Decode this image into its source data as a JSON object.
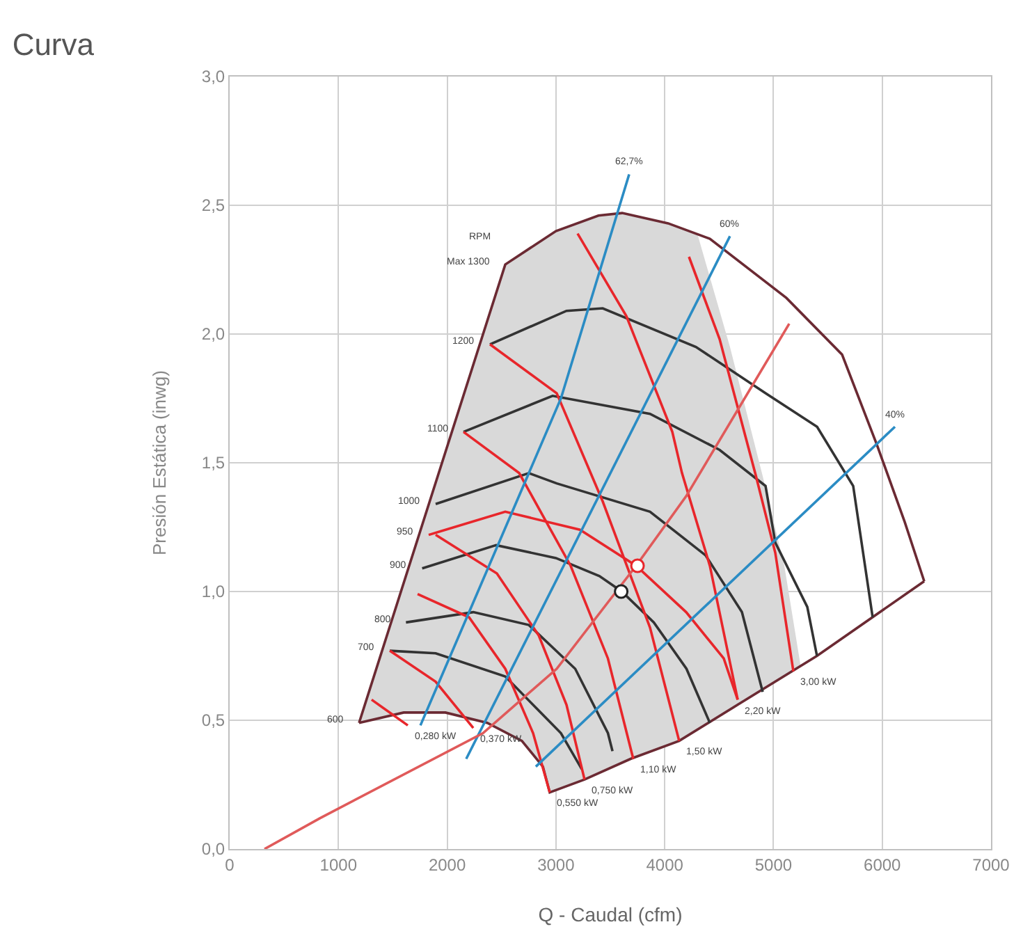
{
  "chart_data": {
    "type": "line",
    "title": "Curva",
    "xlabel": "Q - Caudal (cfm)",
    "ylabel": "Presión Estática (inwg)",
    "xlim": [
      0,
      7000
    ],
    "xticks": [
      0,
      1000,
      2000,
      3000,
      4000,
      5000,
      6000,
      7000
    ],
    "ylim": [
      0,
      3
    ],
    "yticks": [
      {
        "value": 0,
        "label": "0,0"
      },
      {
        "value": 0.5,
        "label": "0,5"
      },
      {
        "value": 1,
        "label": "1,0"
      },
      {
        "value": 1.5,
        "label": "1,5"
      },
      {
        "value": 2,
        "label": "2,0"
      },
      {
        "value": 2.5,
        "label": "2,5"
      },
      {
        "value": 3,
        "label": "3,0"
      }
    ],
    "grid": true,
    "marker": "none",
    "series": [
      {
        "type": "area",
        "color": "#d9d9d9",
        "x": [
          1190,
          2534,
          3000,
          3391,
          3609,
          4031,
          4300,
          4600,
          4900,
          5100,
          5250,
          4670,
          4133,
          3686,
          3263,
          2943,
          2880,
          2687,
          2368,
          1984,
          1600,
          1190
        ],
        "values": [
          0.49,
          2.27,
          2.4,
          2.46,
          2.47,
          2.43,
          2.39,
          1.95,
          1.45,
          1.1,
          0.71,
          0.56,
          0.42,
          0.35,
          0.27,
          0.22,
          0.32,
          0.42,
          0.49,
          0.53,
          0.53,
          0.49
        ]
      },
      {
        "color": "#6b2a33",
        "x": [
          1190,
          2534,
          3000,
          3391,
          3609,
          4031,
          4415,
          5119,
          5631,
          5951,
          6207,
          6386
        ],
        "values": [
          0.49,
          2.27,
          2.4,
          2.46,
          2.47,
          2.43,
          2.37,
          2.14,
          1.92,
          1.57,
          1.27,
          1.04
        ]
      },
      {
        "color": "#6b2a33",
        "x": [
          6386,
          5400,
          4670,
          4133,
          3686,
          3263,
          2943,
          2880,
          2687,
          2368,
          1984,
          1600,
          1190
        ],
        "values": [
          1.04,
          0.75,
          0.56,
          0.42,
          0.35,
          0.27,
          0.22,
          0.32,
          0.42,
          0.49,
          0.53,
          0.53,
          0.49
        ]
      },
      {
        "color": "#333333",
        "x": [
          2393,
          3097,
          3430,
          4287,
          4927,
          5401,
          5733,
          5912
        ],
        "values": [
          1.96,
          2.09,
          2.1,
          1.95,
          1.77,
          1.64,
          1.41,
          0.9
        ]
      },
      {
        "color": "#333333",
        "x": [
          2150,
          2969,
          3865,
          4505,
          4927,
          5017,
          5311,
          5400
        ],
        "values": [
          1.62,
          1.76,
          1.69,
          1.55,
          1.41,
          1.19,
          0.94,
          0.75
        ]
      },
      {
        "color": "#333333",
        "x": [
          1894,
          2751,
          3007,
          3865,
          4377,
          4710,
          4901
        ],
        "values": [
          1.34,
          1.46,
          1.42,
          1.31,
          1.14,
          0.92,
          0.61
        ]
      },
      {
        "color": "#333333",
        "x": [
          1770,
          2450,
          3000,
          3400,
          3605,
          3900,
          4200,
          4415
        ],
        "values": [
          1.09,
          1.18,
          1.13,
          1.06,
          1.0,
          0.88,
          0.7,
          0.49
        ]
      },
      {
        "color": "#333333",
        "x": [
          1621,
          2240,
          2751,
          3177,
          3478,
          3520
        ],
        "values": [
          0.88,
          0.92,
          0.87,
          0.7,
          0.45,
          0.38
        ]
      },
      {
        "color": "#333333",
        "x": [
          1472,
          1894,
          2534,
          3046,
          3238
        ],
        "values": [
          0.77,
          0.76,
          0.67,
          0.45,
          0.31
        ]
      },
      {
        "color": "#e8262b",
        "x": [
          4223,
          4505,
          4838,
          5017,
          5183
        ],
        "values": [
          2.3,
          1.98,
          1.45,
          1.15,
          0.69
        ]
      },
      {
        "color": "#e8262b",
        "x": [
          3199,
          3647,
          4070,
          4159,
          4415,
          4671
        ],
        "values": [
          2.39,
          2.07,
          1.62,
          1.46,
          1.1,
          0.58
        ]
      },
      {
        "color": "#e8262b",
        "x": [
          1830,
          2534,
          3221,
          3737,
          4197,
          4543,
          4671
        ],
        "values": [
          1.22,
          1.31,
          1.24,
          1.1,
          0.92,
          0.74,
          0.58
        ]
      },
      {
        "color": "#e8262b",
        "x": [
          2393,
          3007,
          3430,
          3865,
          4133
        ],
        "values": [
          1.96,
          1.77,
          1.35,
          0.86,
          0.42
        ]
      },
      {
        "color": "#e8262b",
        "x": [
          2150,
          2662,
          3135,
          3478,
          3711
        ],
        "values": [
          1.62,
          1.46,
          1.1,
          0.74,
          0.35
        ]
      },
      {
        "color": "#e8262b",
        "x": [
          1894,
          2457,
          2841,
          3097,
          3263
        ],
        "values": [
          1.22,
          1.07,
          0.83,
          0.56,
          0.27
        ]
      },
      {
        "color": "#e8262b",
        "x": [
          1728,
          2201,
          2534,
          2790,
          2943
        ],
        "values": [
          0.99,
          0.9,
          0.7,
          0.45,
          0.22
        ]
      },
      {
        "color": "#e8262b",
        "x": [
          1472,
          1894,
          2240
        ],
        "values": [
          0.77,
          0.65,
          0.47
        ]
      },
      {
        "color": "#e8262b",
        "x": [
          1305,
          1638
        ],
        "values": [
          0.58,
          0.48
        ]
      },
      {
        "color": "#2b8cc4",
        "x": [
          3673,
          3046,
          1754
        ],
        "values": [
          2.62,
          1.75,
          0.48
        ]
      },
      {
        "color": "#2b8cc4",
        "x": [
          4600,
          2175
        ],
        "values": [
          2.38,
          0.35
        ]
      },
      {
        "color": "#2b8cc4",
        "x": [
          6117,
          2815
        ],
        "values": [
          1.64,
          0.32
        ]
      },
      {
        "color": "#e05a5a",
        "x": [
          320,
          832,
          2329,
          3007,
          3737,
          4197,
          5145
        ],
        "values": [
          0,
          0.12,
          0.45,
          0.7,
          1.1,
          1.37,
          2.04
        ]
      },
      {
        "type": "scatter",
        "marker": "circle",
        "color": "#222222",
        "x": [
          3600
        ],
        "values": [
          1.0
        ]
      },
      {
        "type": "scatter",
        "marker": "circle",
        "color": "#e8262b",
        "x": [
          3750
        ],
        "values": [
          1.1
        ]
      }
    ],
    "annotations": [
      "RPM",
      {
        "text": "Max 1300",
        "x": 2534,
        "y": 2.27
      },
      {
        "text": "1200",
        "x": 2393,
        "y": 1.96
      },
      {
        "text": "1100",
        "x": 2150,
        "y": 1.62
      },
      {
        "text": "1000",
        "x": 1894,
        "y": 1.34
      },
      {
        "text": "950",
        "x": 1830,
        "y": 1.22
      },
      {
        "text": "900",
        "x": 1770,
        "y": 1.09
      },
      {
        "text": "800",
        "x": 1621,
        "y": 0.88
      },
      {
        "text": "700",
        "x": 1472,
        "y": 0.77
      },
      {
        "text": "600",
        "x": 1190,
        "y": 0.49
      },
      {
        "text": "0,280 kW",
        "x": 1638,
        "y": 0.48
      },
      {
        "text": "0,370 kW",
        "x": 2240,
        "y": 0.47
      },
      {
        "text": "0,550 kW",
        "x": 2943,
        "y": 0.22
      },
      {
        "text": "0,750 kW",
        "x": 3263,
        "y": 0.27
      },
      {
        "text": "1,10 kW",
        "x": 3711,
        "y": 0.35
      },
      {
        "text": "1,50 kW",
        "x": 4133,
        "y": 0.42
      },
      {
        "text": "2,20 kW",
        "x": 4671,
        "y": 0.58
      },
      {
        "text": "3,00 kW",
        "x": 5183,
        "y": 0.69
      },
      {
        "text": "62,7%",
        "x": 3673,
        "y": 2.62
      },
      {
        "text": "60%",
        "x": 4600,
        "y": 2.38
      },
      {
        "text": "40%",
        "x": 6117,
        "y": 1.64
      }
    ]
  }
}
